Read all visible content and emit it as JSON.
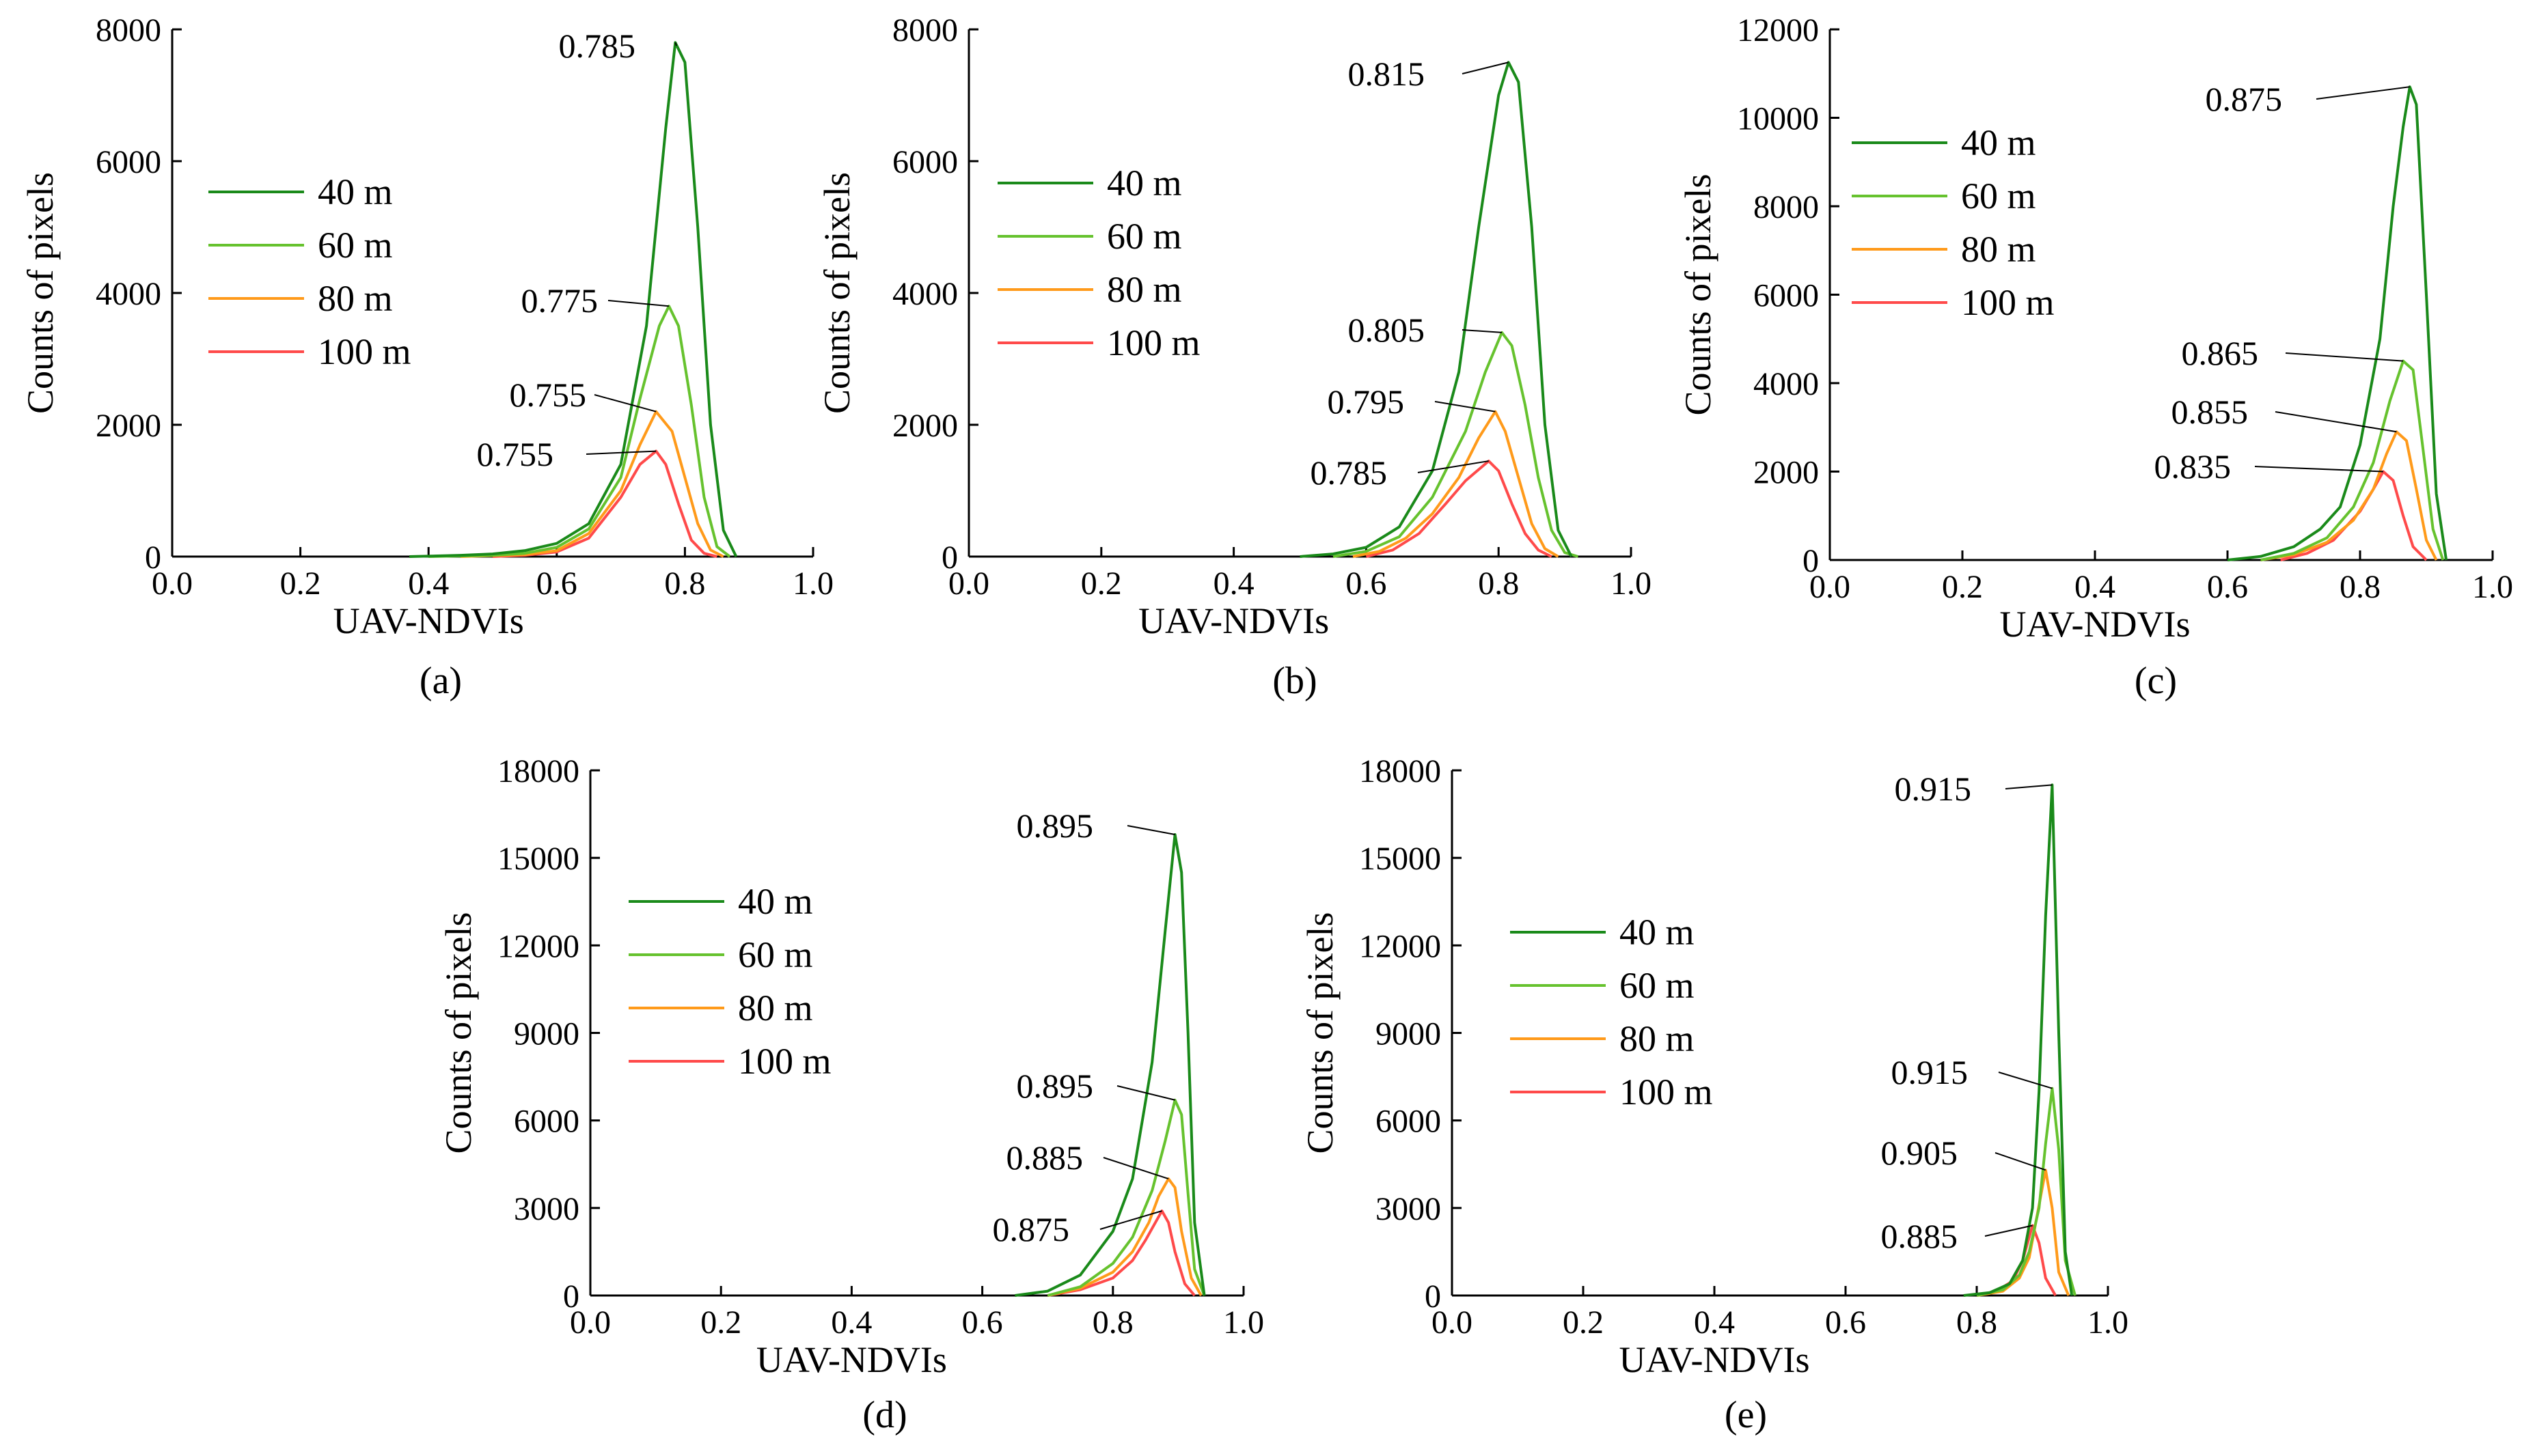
{
  "colors": {
    "40 m": "#1a8a1a",
    "60 m": "#66c22e",
    "80 m": "#ff9a1a",
    "100 m": "#ff4a4a",
    "axis": "#000000",
    "leader": "#000000"
  },
  "chart_data": [
    {
      "type": "line",
      "panel": "(a)",
      "xlabel": "UAV-NDVIs",
      "ylabel": "Counts of pixels",
      "xlim": [
        0,
        1
      ],
      "ylim": [
        0,
        8000
      ],
      "xticks": [
        "0.0",
        "0.2",
        "0.4",
        "0.6",
        "0.8",
        "1.0"
      ],
      "yticks": [
        "0",
        "2000",
        "4000",
        "6000",
        "8000"
      ],
      "legend": [
        "40 m",
        "60 m",
        "80 m",
        "100 m"
      ],
      "series": [
        {
          "name": "40 m",
          "peak_label": "0.785",
          "x": [
            0.37,
            0.45,
            0.5,
            0.55,
            0.6,
            0.65,
            0.7,
            0.74,
            0.77,
            0.785,
            0.8,
            0.82,
            0.84,
            0.86,
            0.88
          ],
          "values": [
            0,
            20,
            40,
            90,
            200,
            500,
            1400,
            3500,
            6500,
            7800,
            7500,
            5000,
            2000,
            400,
            0
          ]
        },
        {
          "name": "60 m",
          "peak_label": "0.775",
          "x": [
            0.4,
            0.5,
            0.55,
            0.6,
            0.65,
            0.7,
            0.73,
            0.76,
            0.775,
            0.79,
            0.81,
            0.83,
            0.85,
            0.87
          ],
          "values": [
            0,
            20,
            50,
            140,
            420,
            1200,
            2400,
            3500,
            3800,
            3500,
            2300,
            900,
            150,
            0
          ]
        },
        {
          "name": "80 m",
          "peak_label": "0.755",
          "x": [
            0.45,
            0.55,
            0.6,
            0.65,
            0.7,
            0.73,
            0.755,
            0.78,
            0.8,
            0.82,
            0.84,
            0.86
          ],
          "values": [
            0,
            30,
            90,
            350,
            1000,
            1700,
            2200,
            1900,
            1200,
            500,
            100,
            0
          ]
        },
        {
          "name": "100 m",
          "peak_label": "0.755",
          "x": [
            0.5,
            0.55,
            0.6,
            0.65,
            0.7,
            0.73,
            0.755,
            0.77,
            0.79,
            0.81,
            0.83,
            0.85
          ],
          "values": [
            0,
            20,
            70,
            280,
            900,
            1400,
            1600,
            1400,
            800,
            250,
            50,
            0
          ]
        }
      ]
    },
    {
      "type": "line",
      "panel": "(b)",
      "xlabel": "UAV-NDVIs",
      "ylabel": "Counts of pixels",
      "xlim": [
        0,
        1
      ],
      "ylim": [
        0,
        8000
      ],
      "xticks": [
        "0.0",
        "0.2",
        "0.4",
        "0.6",
        "0.8",
        "1.0"
      ],
      "yticks": [
        "0",
        "2000",
        "4000",
        "6000",
        "8000"
      ],
      "legend": [
        "40 m",
        "60 m",
        "80 m",
        "100 m"
      ],
      "series": [
        {
          "name": "40 m",
          "peak_label": "0.815",
          "x": [
            0.5,
            0.55,
            0.6,
            0.65,
            0.7,
            0.74,
            0.77,
            0.8,
            0.815,
            0.83,
            0.85,
            0.87,
            0.89,
            0.91
          ],
          "values": [
            0,
            40,
            140,
            450,
            1300,
            2800,
            5000,
            7000,
            7500,
            7200,
            5000,
            2000,
            400,
            0
          ]
        },
        {
          "name": "60 m",
          "peak_label": "0.805",
          "x": [
            0.55,
            0.6,
            0.65,
            0.7,
            0.75,
            0.78,
            0.805,
            0.82,
            0.84,
            0.86,
            0.88,
            0.9,
            0.92
          ],
          "values": [
            0,
            80,
            300,
            900,
            1900,
            2800,
            3400,
            3200,
            2300,
            1200,
            400,
            60,
            0
          ]
        },
        {
          "name": "80 m",
          "peak_label": "0.795",
          "x": [
            0.58,
            0.62,
            0.66,
            0.7,
            0.74,
            0.77,
            0.795,
            0.81,
            0.83,
            0.85,
            0.87,
            0.89
          ],
          "values": [
            0,
            80,
            280,
            650,
            1200,
            1800,
            2200,
            1900,
            1200,
            500,
            120,
            0
          ]
        },
        {
          "name": "100 m",
          "peak_label": "0.785",
          "x": [
            0.6,
            0.64,
            0.68,
            0.72,
            0.75,
            0.785,
            0.8,
            0.82,
            0.84,
            0.86,
            0.88
          ],
          "values": [
            0,
            100,
            350,
            800,
            1150,
            1450,
            1300,
            800,
            350,
            100,
            0
          ]
        }
      ]
    },
    {
      "type": "line",
      "panel": "(c)",
      "xlabel": "UAV-NDVIs",
      "ylabel": "Counts of pixels",
      "xlim": [
        0,
        1
      ],
      "ylim": [
        0,
        12000
      ],
      "xticks": [
        "0.0",
        "0.2",
        "0.4",
        "0.6",
        "0.8",
        "1.0"
      ],
      "yticks": [
        "0",
        "2000",
        "4000",
        "6000",
        "8000",
        "10000",
        "12000"
      ],
      "legend": [
        "40 m",
        "60 m",
        "80 m",
        "100 m"
      ],
      "series": [
        {
          "name": "40 m",
          "peak_label": "0.875",
          "x": [
            0.6,
            0.65,
            0.7,
            0.74,
            0.77,
            0.8,
            0.83,
            0.85,
            0.865,
            0.875,
            0.885,
            0.9,
            0.915,
            0.93
          ],
          "values": [
            0,
            80,
            300,
            700,
            1200,
            2600,
            5000,
            8000,
            9800,
            10700,
            10300,
            6000,
            1500,
            0
          ]
        },
        {
          "name": "60 m",
          "peak_label": "0.865",
          "x": [
            0.65,
            0.7,
            0.75,
            0.79,
            0.82,
            0.845,
            0.865,
            0.88,
            0.895,
            0.91,
            0.925
          ],
          "values": [
            0,
            150,
            500,
            1200,
            2200,
            3600,
            4500,
            4300,
            2500,
            700,
            0
          ]
        },
        {
          "name": "80 m",
          "peak_label": "0.855",
          "x": [
            0.65,
            0.7,
            0.75,
            0.79,
            0.82,
            0.84,
            0.855,
            0.87,
            0.885,
            0.9,
            0.915
          ],
          "values": [
            0,
            120,
            400,
            900,
            1600,
            2400,
            2900,
            2700,
            1600,
            450,
            0
          ]
        },
        {
          "name": "100 m",
          "peak_label": "0.835",
          "x": [
            0.68,
            0.72,
            0.76,
            0.8,
            0.82,
            0.835,
            0.85,
            0.865,
            0.88,
            0.9
          ],
          "values": [
            0,
            150,
            450,
            1100,
            1600,
            2000,
            1800,
            1000,
            300,
            0
          ]
        }
      ]
    },
    {
      "type": "line",
      "panel": "(d)",
      "xlabel": "UAV-NDVIs",
      "ylabel": "Counts of pixels",
      "xlim": [
        0,
        1
      ],
      "ylim": [
        0,
        18000
      ],
      "xticks": [
        "0.0",
        "0.2",
        "0.4",
        "0.6",
        "0.8",
        "1.0"
      ],
      "yticks": [
        "0",
        "3000",
        "6000",
        "9000",
        "12000",
        "15000",
        "18000"
      ],
      "legend": [
        "40 m",
        "60 m",
        "80 m",
        "100 m"
      ],
      "series": [
        {
          "name": "40 m",
          "peak_label": "0.895",
          "x": [
            0.65,
            0.7,
            0.75,
            0.8,
            0.83,
            0.86,
            0.88,
            0.895,
            0.905,
            0.915,
            0.925,
            0.94
          ],
          "values": [
            0,
            150,
            700,
            2200,
            4000,
            8000,
            12500,
            15800,
            14500,
            9000,
            2500,
            0
          ]
        },
        {
          "name": "60 m",
          "peak_label": "0.895",
          "x": [
            0.7,
            0.75,
            0.8,
            0.83,
            0.86,
            0.88,
            0.895,
            0.905,
            0.915,
            0.925,
            0.94
          ],
          "values": [
            0,
            300,
            1100,
            2000,
            3600,
            5300,
            6700,
            6200,
            3500,
            900,
            0
          ]
        },
        {
          "name": "80 m",
          "peak_label": "0.885",
          "x": [
            0.7,
            0.75,
            0.8,
            0.83,
            0.855,
            0.87,
            0.885,
            0.895,
            0.905,
            0.92,
            0.935
          ],
          "values": [
            0,
            250,
            800,
            1500,
            2500,
            3400,
            4000,
            3700,
            2200,
            600,
            0
          ]
        },
        {
          "name": "100 m",
          "peak_label": "0.875",
          "x": [
            0.7,
            0.75,
            0.8,
            0.83,
            0.85,
            0.865,
            0.875,
            0.885,
            0.895,
            0.91,
            0.925
          ],
          "values": [
            0,
            200,
            600,
            1200,
            1900,
            2500,
            2900,
            2500,
            1500,
            400,
            0
          ]
        }
      ]
    },
    {
      "type": "line",
      "panel": "(e)",
      "xlabel": "UAV-NDVIs",
      "ylabel": "Counts of pixels",
      "xlim": [
        0,
        1
      ],
      "ylim": [
        0,
        18000
      ],
      "xticks": [
        "0.0",
        "0.2",
        "0.4",
        "0.6",
        "0.8",
        "1.0"
      ],
      "yticks": [
        "0",
        "3000",
        "6000",
        "9000",
        "12000",
        "15000",
        "18000"
      ],
      "legend": [
        "40 m",
        "60 m",
        "80 m",
        "100 m"
      ],
      "series": [
        {
          "name": "40 m",
          "peak_label": "0.915",
          "x": [
            0.78,
            0.82,
            0.85,
            0.87,
            0.885,
            0.895,
            0.905,
            0.915,
            0.925,
            0.935,
            0.945
          ],
          "values": [
            0,
            100,
            400,
            1200,
            3000,
            7000,
            13000,
            17500,
            9000,
            1500,
            0
          ]
        },
        {
          "name": "60 m",
          "peak_label": "0.915",
          "x": [
            0.8,
            0.84,
            0.865,
            0.88,
            0.895,
            0.905,
            0.915,
            0.925,
            0.935,
            0.95
          ],
          "values": [
            0,
            200,
            700,
            1500,
            3000,
            5200,
            7100,
            5000,
            1200,
            0
          ]
        },
        {
          "name": "80 m",
          "peak_label": "0.905",
          "x": [
            0.8,
            0.84,
            0.865,
            0.88,
            0.89,
            0.905,
            0.915,
            0.925,
            0.94
          ],
          "values": [
            0,
            150,
            600,
            1300,
            2500,
            4300,
            3000,
            800,
            0
          ]
        },
        {
          "name": "100 m",
          "peak_label": "0.885",
          "x": [
            0.8,
            0.83,
            0.855,
            0.87,
            0.885,
            0.895,
            0.905,
            0.92
          ],
          "values": [
            0,
            150,
            500,
            1200,
            2400,
            1800,
            600,
            0
          ]
        }
      ]
    }
  ]
}
